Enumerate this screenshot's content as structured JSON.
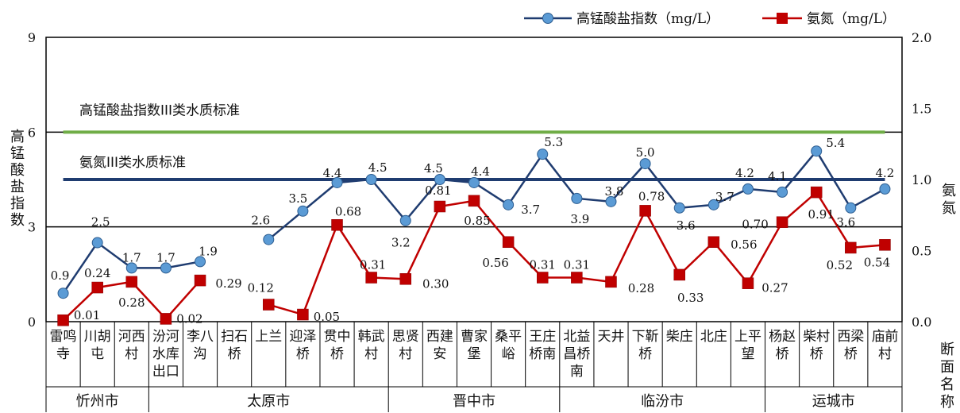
{
  "chart_data": {
    "type": "line",
    "categories": [
      [
        "雷鸣",
        "寺"
      ],
      [
        "川胡",
        "屯"
      ],
      [
        "河西",
        "村"
      ],
      [
        "汾河",
        "水库",
        "出口"
      ],
      [
        "李八",
        "沟"
      ],
      [
        "扫石",
        "桥"
      ],
      [
        "上兰",
        ""
      ],
      [
        "迎泽",
        "桥"
      ],
      [
        "贯中",
        "桥"
      ],
      [
        "韩武",
        "村"
      ],
      [
        "思贤",
        "村"
      ],
      [
        "西建",
        "安"
      ],
      [
        "曹家",
        "堡"
      ],
      [
        "桑平",
        "峪"
      ],
      [
        "王庄",
        "桥南"
      ],
      [
        "北益",
        "昌桥",
        "南"
      ],
      [
        "天井",
        ""
      ],
      [
        "下靳",
        "桥"
      ],
      [
        "柴庄",
        ""
      ],
      [
        "北庄",
        ""
      ],
      [
        "上平",
        "望"
      ],
      [
        "杨赵",
        "桥"
      ],
      [
        "柴村",
        "桥"
      ],
      [
        "西梁",
        "桥"
      ],
      [
        "庙前",
        "村"
      ]
    ],
    "cities": [
      {
        "name": "忻州市",
        "from": 0,
        "to": 2
      },
      {
        "name": "太原市",
        "from": 3,
        "to": 9
      },
      {
        "name": "晋中市",
        "from": 10,
        "to": 14
      },
      {
        "name": "临汾市",
        "from": 15,
        "to": 20
      },
      {
        "name": "运城市",
        "from": 21,
        "to": 24
      }
    ],
    "series": [
      {
        "name": "高锰酸盐指数（mg/L）",
        "axis": "left",
        "color": "#1f3c70",
        "marker_color": "#5b9bd5",
        "marker": "circle",
        "values": [
          0.9,
          2.5,
          1.7,
          1.7,
          1.9,
          null,
          2.6,
          3.5,
          4.4,
          4.5,
          3.2,
          4.5,
          4.4,
          3.7,
          5.3,
          3.9,
          3.8,
          5.0,
          3.6,
          3.7,
          4.2,
          4.1,
          5.4,
          3.6,
          4.2
        ],
        "labels": [
          "0.9",
          "2.5",
          "1.7",
          "1.7",
          "1.9",
          null,
          "2.6",
          "3.5",
          "4.4",
          "4.5",
          "3.2",
          "4.5",
          "4.4",
          "3.7",
          "5.3",
          "3.9",
          "3.8",
          "5.0",
          "3.6",
          "3.7",
          "4.2",
          "4.1",
          "5.4",
          "3.6",
          "4.2"
        ]
      },
      {
        "name": "氨氮（mg/L）",
        "axis": "right",
        "color": "#c00000",
        "marker": "square",
        "values": [
          0.01,
          0.24,
          0.28,
          0.02,
          0.29,
          null,
          0.12,
          0.05,
          0.68,
          0.31,
          0.3,
          0.81,
          0.85,
          0.56,
          0.31,
          0.31,
          0.28,
          0.78,
          0.33,
          0.56,
          0.27,
          0.7,
          0.91,
          0.52,
          0.54
        ],
        "labels": [
          "0.01",
          "0.24",
          "0.28",
          "0.02",
          "0.29",
          null,
          "0.12",
          "0.05",
          "0.68",
          "0.31",
          "0.30",
          "0.81",
          "0.85",
          "0.56",
          "0.31",
          "0.31",
          "0.28",
          "0.78",
          "0.33",
          "0.56",
          "0.27",
          "0.70",
          "0.91",
          "0.52",
          "0.54"
        ]
      }
    ],
    "standards": [
      {
        "label": "高锰酸盐指数III类水质标准",
        "axis": "left",
        "value": 6,
        "color": "#70ad47"
      },
      {
        "label": "氨氮III类水质标准",
        "axis": "right",
        "value": 1.0,
        "color": "#1f3c70"
      }
    ],
    "y_left": {
      "label": "高锰酸盐指数",
      "range": [
        0,
        9
      ],
      "ticks": [
        "0",
        "3",
        "6",
        "9"
      ]
    },
    "y_right": {
      "label": "氨氮",
      "range": [
        0,
        2.0
      ],
      "ticks": [
        "0.0",
        "0.5",
        "1.0",
        "1.5",
        "2.0"
      ]
    },
    "xlabel": "断面名称",
    "grid": "horizontal at left ticks",
    "legend_position": "top-right"
  }
}
